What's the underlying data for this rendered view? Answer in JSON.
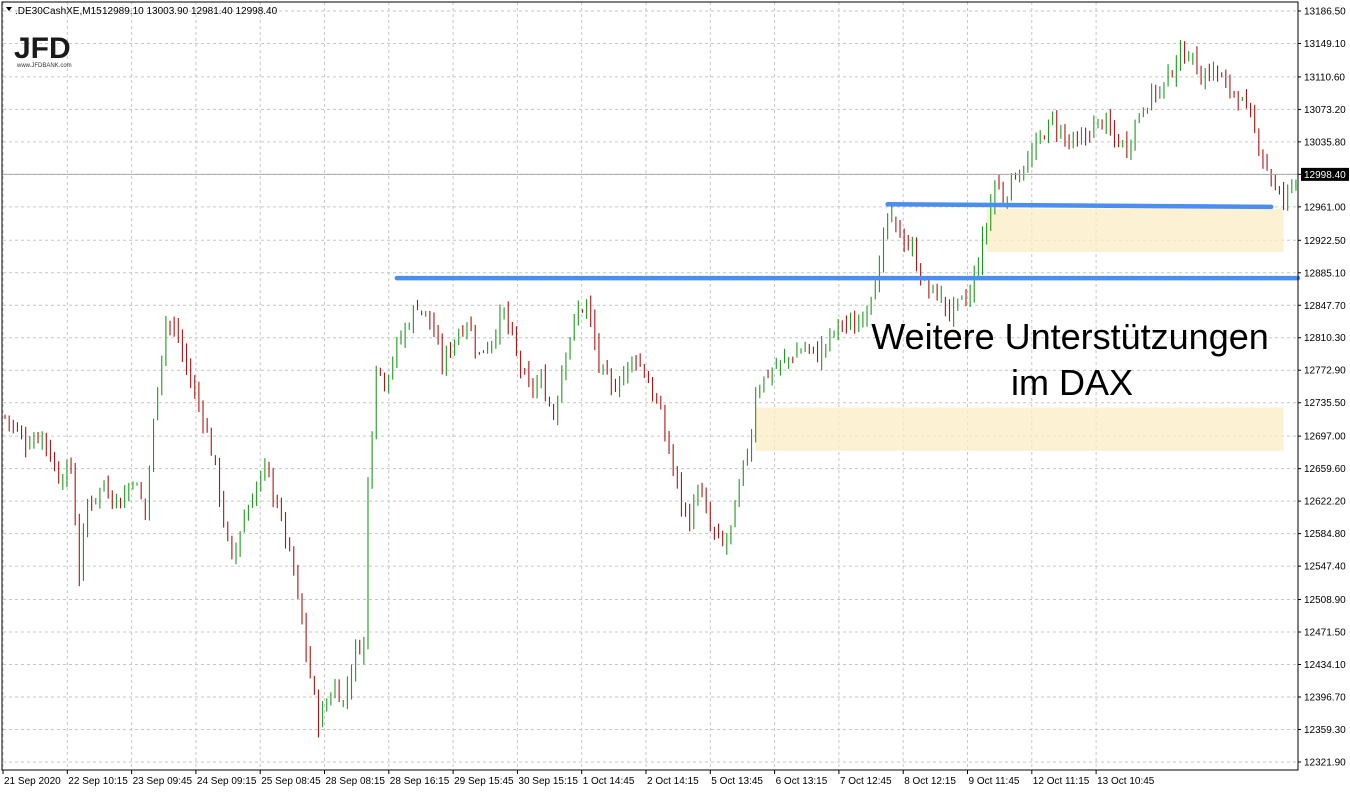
{
  "header": {
    "symbol": ".DE30CashXE,M15",
    "ohlc": "12989.10 13003.90 12981.40 12998.40"
  },
  "logo": {
    "text": "JFD",
    "sub": "www.JFDBANK.com"
  },
  "colors": {
    "bull": "#1e9a1e",
    "bear": "#b01414",
    "grid": "#c6c6c6",
    "support_line": "#4a8ef0",
    "zone_fill": "#fcecc6",
    "price_marker_bg": "#000000"
  },
  "annotation": {
    "line1": "Weitere Unterstützungen",
    "line2": "im DAX"
  },
  "chart_data": {
    "type": "candlestick",
    "title": "",
    "xlabel": "",
    "ylabel": "",
    "ylim": [
      12303,
      13205
    ],
    "grid": true,
    "y_ticks": [
      "13186.50",
      "13149.10",
      "13110.60",
      "13073.20",
      "13035.80",
      "12998.40",
      "12961.00",
      "12922.50",
      "12885.10",
      "12847.70",
      "12810.30",
      "12772.90",
      "12735.50",
      "12697.00",
      "12659.60",
      "12622.20",
      "12584.80",
      "12547.40",
      "12508.90",
      "12471.50",
      "12434.10",
      "12396.70",
      "12359.30",
      "12321.90"
    ],
    "x_ticks": [
      "21 Sep 2020",
      "22 Sep 10:15",
      "23 Sep 09:45",
      "24 Sep 09:15",
      "25 Sep 08:45",
      "28 Sep 08:15",
      "28 Sep 16:15",
      "29 Sep 15:45",
      "30 Sep 15:15",
      "1 Oct 14:45",
      "2 Oct 14:15",
      "5 Oct 13:45",
      "6 Oct 13:15",
      "7 Oct 12:45",
      "8 Oct 12:15",
      "9 Oct 11:45",
      "12 Oct 11:15",
      "13 Oct 10:45"
    ],
    "current_price": "12998.40",
    "close_path": [
      [
        0,
        12720
      ],
      [
        5,
        12690
      ],
      [
        9,
        12700
      ],
      [
        13,
        12650
      ],
      [
        16,
        12660
      ],
      [
        18,
        12540
      ],
      [
        20,
        12620
      ],
      [
        24,
        12640
      ],
      [
        28,
        12620
      ],
      [
        31,
        12650
      ],
      [
        34,
        12610
      ],
      [
        37,
        12760
      ],
      [
        39,
        12830
      ],
      [
        42,
        12810
      ],
      [
        45,
        12760
      ],
      [
        48,
        12720
      ],
      [
        51,
        12660
      ],
      [
        53,
        12600
      ],
      [
        55,
        12550
      ],
      [
        57,
        12590
      ],
      [
        61,
        12640
      ],
      [
        63,
        12660
      ],
      [
        66,
        12620
      ],
      [
        68,
        12580
      ],
      [
        70,
        12540
      ],
      [
        72,
        12480
      ],
      [
        74,
        12420
      ],
      [
        76,
        12370
      ],
      [
        78,
        12390
      ],
      [
        80,
        12410
      ],
      [
        82,
        12390
      ],
      [
        85,
        12450
      ],
      [
        87,
        12460
      ],
      [
        88,
        12640
      ],
      [
        90,
        12780
      ],
      [
        92,
        12760
      ],
      [
        95,
        12800
      ],
      [
        98,
        12830
      ],
      [
        100,
        12850
      ],
      [
        103,
        12830
      ],
      [
        106,
        12780
      ],
      [
        109,
        12810
      ],
      [
        112,
        12830
      ],
      [
        115,
        12790
      ],
      [
        118,
        12810
      ],
      [
        121,
        12840
      ],
      [
        124,
        12790
      ],
      [
        127,
        12750
      ],
      [
        130,
        12760
      ],
      [
        133,
        12720
      ],
      [
        136,
        12800
      ],
      [
        139,
        12840
      ],
      [
        141,
        12850
      ],
      [
        144,
        12780
      ],
      [
        147,
        12750
      ],
      [
        150,
        12770
      ],
      [
        153,
        12790
      ],
      [
        156,
        12760
      ],
      [
        159,
        12720
      ],
      [
        162,
        12660
      ],
      [
        164,
        12620
      ],
      [
        166,
        12600
      ],
      [
        168,
        12640
      ],
      [
        171,
        12590
      ],
      [
        174,
        12570
      ],
      [
        176,
        12590
      ],
      [
        179,
        12660
      ],
      [
        181,
        12700
      ],
      [
        182,
        12750
      ],
      [
        185,
        12770
      ],
      [
        188,
        12780
      ],
      [
        191,
        12790
      ],
      [
        194,
        12800
      ],
      [
        197,
        12790
      ],
      [
        200,
        12810
      ],
      [
        203,
        12830
      ],
      [
        206,
        12820
      ],
      [
        209,
        12850
      ],
      [
        212,
        12890
      ],
      [
        214,
        12950
      ],
      [
        217,
        12930
      ],
      [
        220,
        12910
      ],
      [
        223,
        12870
      ],
      [
        226,
        12860
      ],
      [
        229,
        12840
      ],
      [
        232,
        12850
      ],
      [
        234,
        12860
      ],
      [
        236,
        12900
      ],
      [
        238,
        12940
      ],
      [
        240,
        12990
      ],
      [
        242,
        12970
      ],
      [
        245,
        13000
      ],
      [
        248,
        13010
      ],
      [
        251,
        13040
      ],
      [
        254,
        13060
      ],
      [
        257,
        13040
      ],
      [
        260,
        13030
      ],
      [
        263,
        13050
      ],
      [
        266,
        13060
      ],
      [
        269,
        13040
      ],
      [
        272,
        13030
      ],
      [
        275,
        13070
      ],
      [
        278,
        13090
      ],
      [
        281,
        13100
      ],
      [
        284,
        13130
      ],
      [
        287,
        13140
      ],
      [
        290,
        13110
      ],
      [
        293,
        13120
      ],
      [
        296,
        13100
      ],
      [
        299,
        13090
      ],
      [
        302,
        13060
      ],
      [
        305,
        13020
      ],
      [
        308,
        12980
      ],
      [
        310,
        12970
      ],
      [
        313,
        12998
      ]
    ],
    "bar_count": 314,
    "support_lines": [
      {
        "x0_bar": 95,
        "x1_bar": 323,
        "y0": 12879,
        "y1": 12879
      },
      {
        "x0_bar": 214,
        "x1_bar": 307,
        "y0": 12964,
        "y1": 12961
      }
    ],
    "support_zones": [
      {
        "x0_bar": 238,
        "x1_bar": 310,
        "y_low": 12909,
        "y_high": 12959
      },
      {
        "x0_bar": 182,
        "x1_bar": 310,
        "y_low": 12680,
        "y_high": 12730
      }
    ]
  }
}
